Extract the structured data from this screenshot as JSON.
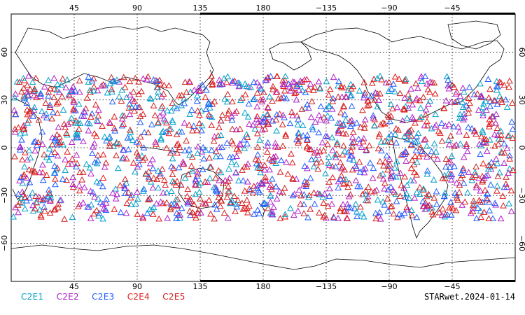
{
  "map": {
    "lon_top_labels": [
      "45",
      "90",
      "135",
      "180",
      "−135",
      "−90",
      "−45"
    ],
    "lon_bottom_labels": [
      "45",
      "90",
      "135",
      "180",
      "−135",
      "−90",
      "−45"
    ],
    "lat_left_labels": [
      "60",
      "30",
      "0",
      "−30",
      "−60"
    ],
    "lat_right_labels": [
      "60",
      "30",
      "0",
      "−30",
      "−60"
    ],
    "frame_color": "#000000",
    "grid": "dotted"
  },
  "legend": [
    {
      "label": "C2E1",
      "color": "#00a0c8"
    },
    {
      "label": "C2E2",
      "color": "#b020c8"
    },
    {
      "label": "C2E3",
      "color": "#1e5aff"
    },
    {
      "label": "C2E4",
      "color": "#e01a1a"
    },
    {
      "label": "C2E5",
      "color": "#d02020"
    }
  ],
  "caption": "STARwet.2024-01-14",
  "observations": {
    "marker": "triangle-outline",
    "lat_range": [
      -45,
      45
    ],
    "series_colors": [
      "#00a0c8",
      "#b020c8",
      "#1e5aff",
      "#e01a1a",
      "#d02020"
    ]
  }
}
